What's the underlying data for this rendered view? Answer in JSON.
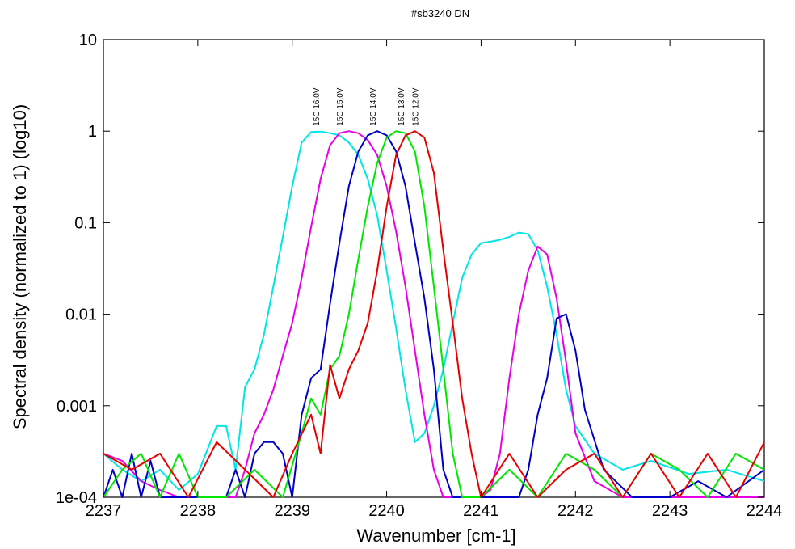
{
  "chart_data": {
    "type": "line",
    "title": "#sb3240 DN",
    "xlabel": "Wavenumber [cm-1]",
    "ylabel": "Spectral density (normalized to 1) (log10)",
    "xlim": [
      2237,
      2244
    ],
    "ylim": [
      0.0001,
      10
    ],
    "y_scale": "log",
    "grid": false,
    "x_ticks": [
      2237,
      2238,
      2239,
      2240,
      2241,
      2242,
      2243,
      2244
    ],
    "x_tick_labels": [
      "2237",
      "2238",
      "2239",
      "2240",
      "2241",
      "2242",
      "2243",
      "2244"
    ],
    "y_ticks": [
      0.0001,
      0.001,
      0.01,
      0.1,
      1,
      10
    ],
    "y_tick_labels": [
      "1e-04",
      "0.001",
      "0.01",
      "0.1",
      "1",
      "10"
    ],
    "annotations": [
      {
        "text": "15C 16.0V",
        "x": 2239.25,
        "y": 1.05
      },
      {
        "text": "15C 15.0V",
        "x": 2239.5,
        "y": 1.05
      },
      {
        "text": "15C 14.0V",
        "x": 2239.85,
        "y": 1.05
      },
      {
        "text": "15C 13.0V",
        "x": 2240.15,
        "y": 1.05
      },
      {
        "text": "15C 12.0V",
        "x": 2240.3,
        "y": 1.05
      }
    ],
    "series": [
      {
        "color": "#00e5e5",
        "x": [
          2237.0,
          2237.2,
          2237.4,
          2237.6,
          2237.8,
          2238.0,
          2238.2,
          2238.3,
          2238.4,
          2238.5,
          2238.6,
          2238.7,
          2238.8,
          2238.9,
          2239.0,
          2239.1,
          2239.2,
          2239.3,
          2239.4,
          2239.5,
          2239.6,
          2239.7,
          2239.8,
          2239.9,
          2240.0,
          2240.1,
          2240.2,
          2240.3,
          2240.4,
          2240.5,
          2240.6,
          2240.7,
          2240.8,
          2240.9,
          2241.0,
          2241.1,
          2241.2,
          2241.3,
          2241.4,
          2241.5,
          2241.6,
          2241.7,
          2241.8,
          2241.9,
          2242.0,
          2242.2,
          2242.5,
          2242.8,
          2243.2,
          2243.6,
          2244.0
        ],
        "y": [
          0.0003,
          0.0002,
          0.00015,
          0.0002,
          0.00012,
          0.00018,
          0.0006,
          0.0006,
          0.0002,
          0.0016,
          0.0025,
          0.006,
          0.02,
          0.07,
          0.25,
          0.75,
          0.98,
          0.99,
          0.95,
          0.9,
          0.75,
          0.55,
          0.3,
          0.12,
          0.03,
          0.007,
          0.0015,
          0.0004,
          0.0005,
          0.001,
          0.0025,
          0.008,
          0.025,
          0.045,
          0.06,
          0.062,
          0.065,
          0.07,
          0.078,
          0.075,
          0.05,
          0.02,
          0.006,
          0.0015,
          0.0006,
          0.0003,
          0.0002,
          0.00025,
          0.00018,
          0.0002,
          0.00015
        ]
      },
      {
        "color": "#e600e6",
        "x": [
          2237.0,
          2237.2,
          2237.4,
          2237.6,
          2237.8,
          2238.0,
          2238.2,
          2238.4,
          2238.5,
          2238.6,
          2238.7,
          2238.8,
          2238.9,
          2239.0,
          2239.1,
          2239.2,
          2239.3,
          2239.4,
          2239.5,
          2239.6,
          2239.7,
          2239.8,
          2239.9,
          2240.0,
          2240.1,
          2240.2,
          2240.3,
          2240.4,
          2240.5,
          2240.6,
          2240.7,
          2240.8,
          2240.9,
          2241.0,
          2241.1,
          2241.2,
          2241.3,
          2241.4,
          2241.5,
          2241.6,
          2241.7,
          2241.8,
          2241.9,
          2242.0,
          2242.2,
          2242.5,
          2242.8,
          2243.2,
          2243.6,
          2244.0
        ],
        "y": [
          0.0003,
          0.00025,
          0.00015,
          0.00012,
          0.0001,
          0.0001,
          0.0001,
          0.0001,
          0.0002,
          0.0005,
          0.0008,
          0.0015,
          0.0035,
          0.008,
          0.025,
          0.09,
          0.3,
          0.7,
          0.95,
          1.0,
          0.95,
          0.8,
          0.55,
          0.25,
          0.08,
          0.02,
          0.004,
          0.0008,
          0.0002,
          0.0001,
          0.0001,
          0.0001,
          0.0001,
          0.0001,
          0.00012,
          0.0003,
          0.002,
          0.01,
          0.03,
          0.055,
          0.045,
          0.015,
          0.003,
          0.0005,
          0.00015,
          0.0001,
          0.0001,
          0.0001,
          0.0001,
          0.0001
        ]
      },
      {
        "color": "#0000c8",
        "x": [
          2237.0,
          2237.1,
          2237.2,
          2237.3,
          2237.4,
          2237.5,
          2237.6,
          2237.8,
          2238.0,
          2238.3,
          2238.4,
          2238.5,
          2238.6,
          2238.7,
          2238.8,
          2238.9,
          2239.0,
          2239.1,
          2239.2,
          2239.3,
          2239.4,
          2239.5,
          2239.6,
          2239.7,
          2239.8,
          2239.9,
          2240.0,
          2240.1,
          2240.2,
          2240.3,
          2240.4,
          2240.5,
          2240.6,
          2240.7,
          2240.8,
          2240.9,
          2241.0,
          2241.2,
          2241.4,
          2241.5,
          2241.6,
          2241.7,
          2241.8,
          2241.9,
          2242.0,
          2242.1,
          2242.3,
          2242.6,
          2243.0,
          2243.3,
          2243.6,
          2244.0
        ],
        "y": [
          0.0001,
          0.0002,
          0.0001,
          0.0003,
          0.0001,
          0.00025,
          0.0001,
          0.0001,
          0.0001,
          0.0001,
          0.0002,
          0.0001,
          0.0003,
          0.0004,
          0.0004,
          0.0003,
          0.0001,
          0.0008,
          0.002,
          0.0025,
          0.013,
          0.06,
          0.25,
          0.6,
          0.9,
          1.0,
          0.9,
          0.6,
          0.25,
          0.06,
          0.015,
          0.0025,
          0.0002,
          0.0001,
          0.0001,
          0.0001,
          0.0001,
          0.0001,
          0.0001,
          0.0002,
          0.0008,
          0.002,
          0.009,
          0.01,
          0.004,
          0.0009,
          0.0002,
          0.0001,
          0.0001,
          0.00015,
          0.0001,
          0.0002
        ]
      },
      {
        "color": "#00e600",
        "x": [
          2237.0,
          2237.2,
          2237.4,
          2237.6,
          2237.8,
          2238.0,
          2238.3,
          2238.6,
          2238.9,
          2239.1,
          2239.2,
          2239.3,
          2239.4,
          2239.5,
          2239.6,
          2239.7,
          2239.8,
          2239.9,
          2240.0,
          2240.1,
          2240.2,
          2240.3,
          2240.4,
          2240.5,
          2240.6,
          2240.7,
          2240.8,
          2240.9,
          2241.0,
          2241.3,
          2241.6,
          2241.9,
          2242.2,
          2242.5,
          2242.8,
          2243.1,
          2243.4,
          2243.7,
          2244.0
        ],
        "y": [
          0.0001,
          0.0002,
          0.0003,
          0.0001,
          0.0003,
          0.0001,
          0.0001,
          0.0002,
          0.0001,
          0.0005,
          0.0012,
          0.0008,
          0.0025,
          0.0035,
          0.01,
          0.04,
          0.15,
          0.45,
          0.85,
          1.0,
          0.95,
          0.6,
          0.15,
          0.02,
          0.0025,
          0.0003,
          0.0001,
          0.0001,
          0.0001,
          0.0002,
          0.0001,
          0.0003,
          0.0002,
          0.0001,
          0.0003,
          0.0002,
          0.0001,
          0.0003,
          0.0002
        ]
      },
      {
        "color": "#e60000",
        "x": [
          2237.0,
          2237.3,
          2237.6,
          2237.9,
          2238.2,
          2238.5,
          2238.8,
          2239.0,
          2239.2,
          2239.3,
          2239.4,
          2239.5,
          2239.6,
          2239.7,
          2239.8,
          2239.9,
          2240.0,
          2240.1,
          2240.2,
          2240.3,
          2240.4,
          2240.5,
          2240.6,
          2240.7,
          2240.8,
          2240.9,
          2241.0,
          2241.3,
          2241.6,
          2241.9,
          2242.2,
          2242.5,
          2242.8,
          2243.1,
          2243.4,
          2243.7,
          2244.0
        ],
        "y": [
          0.0003,
          0.0002,
          0.0003,
          0.0001,
          0.0004,
          0.0002,
          0.0001,
          0.0003,
          0.0008,
          0.0003,
          0.0028,
          0.0012,
          0.0025,
          0.004,
          0.008,
          0.03,
          0.15,
          0.55,
          0.9,
          1.0,
          0.85,
          0.35,
          0.05,
          0.008,
          0.0012,
          0.0003,
          0.0001,
          0.0003,
          0.0001,
          0.0002,
          0.0003,
          0.0001,
          0.0003,
          0.0001,
          0.0003,
          0.0001,
          0.0004
        ]
      }
    ]
  }
}
